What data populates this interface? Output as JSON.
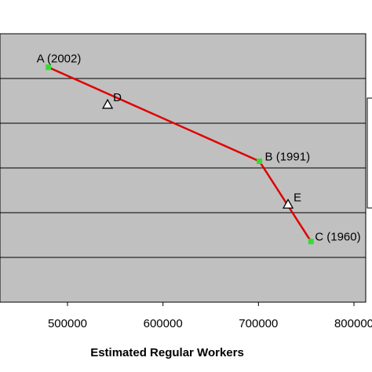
{
  "chart_data": {
    "type": "line",
    "title": "",
    "xlabel": "Estimated Regular Workers",
    "ylabel": "",
    "xlim": [
      400000,
      800000
    ],
    "x_ticks": [
      500000,
      600000,
      700000,
      800000
    ],
    "x_tick_labels": [
      "500000",
      "600000",
      "700000",
      "800000"
    ],
    "y_gridlines": 6,
    "grid": true,
    "plot_background": "#c0c0c0",
    "line_color": "#e00000",
    "point_color": "#33dd33",
    "series": [
      {
        "points": [
          {
            "label": "A (2002)",
            "x": 480000,
            "y": 6.0
          },
          {
            "label": "B (1991)",
            "x": 701000,
            "y": 3.6
          },
          {
            "label": "C (1960)",
            "x": 755000,
            "y": 1.55
          }
        ]
      }
    ],
    "markers": [
      {
        "label": "D",
        "x": 542000,
        "y": 5.05,
        "shape": "triangle"
      },
      {
        "label": "E",
        "x": 731000,
        "y": 2.5,
        "shape": "triangle"
      }
    ]
  }
}
